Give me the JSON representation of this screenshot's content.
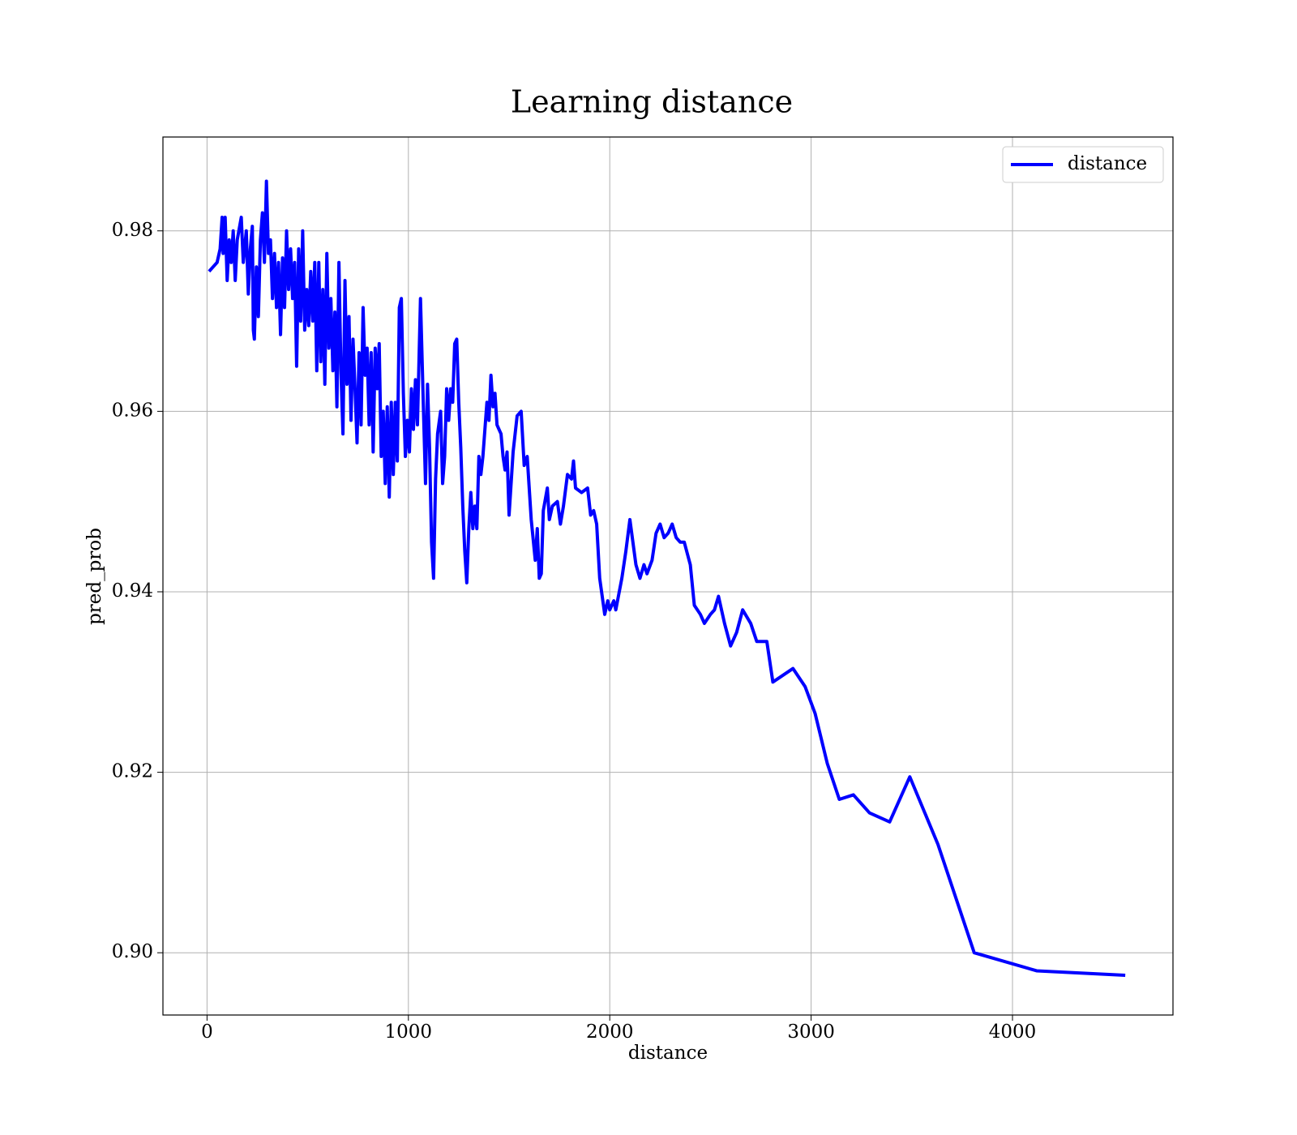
{
  "chart_data": {
    "type": "line",
    "title": "Learning distance",
    "x_label": "distance",
    "y_label": "pred_prob",
    "x": [
      10,
      50,
      65,
      75,
      80,
      90,
      100,
      110,
      120,
      130,
      140,
      150,
      170,
      180,
      195,
      205,
      215,
      225,
      230,
      235,
      245,
      255,
      265,
      275,
      285,
      295,
      305,
      315,
      325,
      335,
      345,
      355,
      365,
      375,
      385,
      395,
      405,
      415,
      425,
      435,
      445,
      455,
      465,
      475,
      485,
      495,
      505,
      515,
      525,
      535,
      545,
      555,
      565,
      575,
      585,
      595,
      605,
      615,
      625,
      635,
      645,
      655,
      665,
      675,
      685,
      695,
      705,
      715,
      725,
      735,
      745,
      755,
      765,
      775,
      785,
      795,
      805,
      815,
      825,
      835,
      845,
      855,
      865,
      875,
      885,
      895,
      905,
      915,
      925,
      935,
      945,
      955,
      965,
      975,
      985,
      995,
      1005,
      1015,
      1025,
      1035,
      1045,
      1060,
      1075,
      1085,
      1095,
      1105,
      1115,
      1125,
      1135,
      1145,
      1160,
      1170,
      1180,
      1190,
      1200,
      1210,
      1220,
      1230,
      1240,
      1250,
      1260,
      1270,
      1280,
      1290,
      1300,
      1310,
      1320,
      1330,
      1340,
      1350,
      1360,
      1370,
      1380,
      1390,
      1400,
      1410,
      1420,
      1430,
      1440,
      1450,
      1460,
      1470,
      1480,
      1490,
      1500,
      1520,
      1540,
      1560,
      1575,
      1590,
      1610,
      1630,
      1640,
      1650,
      1660,
      1670,
      1690,
      1700,
      1715,
      1740,
      1755,
      1770,
      1790,
      1810,
      1820,
      1830,
      1860,
      1890,
      1905,
      1920,
      1935,
      1950,
      1975,
      1990,
      2000,
      2020,
      2030,
      2060,
      2080,
      2100,
      2130,
      2150,
      2170,
      2185,
      2210,
      2230,
      2250,
      2270,
      2290,
      2310,
      2330,
      2350,
      2370,
      2400,
      2420,
      2450,
      2470,
      2500,
      2520,
      2540,
      2570,
      2600,
      2630,
      2660,
      2700,
      2730,
      2780,
      2810,
      2910,
      2970,
      3020,
      3080,
      3140,
      3210,
      3290,
      3390,
      3490,
      3630,
      3810,
      4120,
      4560
    ],
    "series": [
      {
        "name": "distance",
        "color": "#0000ff",
        "values": [
          0.9755,
          0.9765,
          0.978,
          0.9815,
          0.9775,
          0.9815,
          0.9745,
          0.979,
          0.9765,
          0.98,
          0.9745,
          0.979,
          0.9815,
          0.9765,
          0.98,
          0.973,
          0.978,
          0.9805,
          0.969,
          0.968,
          0.976,
          0.9705,
          0.979,
          0.982,
          0.9765,
          0.9855,
          0.9775,
          0.979,
          0.9725,
          0.9775,
          0.9715,
          0.9765,
          0.9685,
          0.977,
          0.9715,
          0.98,
          0.9735,
          0.978,
          0.9725,
          0.9765,
          0.965,
          0.978,
          0.97,
          0.98,
          0.969,
          0.9735,
          0.9695,
          0.9755,
          0.97,
          0.9765,
          0.9645,
          0.9765,
          0.9655,
          0.9735,
          0.963,
          0.9775,
          0.967,
          0.9725,
          0.9645,
          0.971,
          0.9605,
          0.9765,
          0.9645,
          0.9575,
          0.9745,
          0.963,
          0.9705,
          0.959,
          0.968,
          0.9625,
          0.9565,
          0.9665,
          0.9585,
          0.9715,
          0.964,
          0.967,
          0.9585,
          0.9665,
          0.9555,
          0.967,
          0.9625,
          0.9675,
          0.955,
          0.96,
          0.952,
          0.9605,
          0.9505,
          0.961,
          0.953,
          0.961,
          0.9545,
          0.9715,
          0.9725,
          0.962,
          0.955,
          0.959,
          0.9555,
          0.9625,
          0.958,
          0.9635,
          0.9585,
          0.9725,
          0.96,
          0.952,
          0.963,
          0.956,
          0.9455,
          0.9415,
          0.9525,
          0.9575,
          0.96,
          0.952,
          0.955,
          0.9625,
          0.959,
          0.9625,
          0.961,
          0.9675,
          0.968,
          0.961,
          0.956,
          0.9495,
          0.9445,
          0.941,
          0.947,
          0.951,
          0.947,
          0.9495,
          0.947,
          0.955,
          0.953,
          0.955,
          0.958,
          0.961,
          0.959,
          0.964,
          0.9605,
          0.962,
          0.9585,
          0.958,
          0.9575,
          0.955,
          0.9535,
          0.9555,
          0.9485,
          0.9555,
          0.9595,
          0.96,
          0.954,
          0.955,
          0.948,
          0.9435,
          0.947,
          0.9415,
          0.942,
          0.949,
          0.9515,
          0.948,
          0.9495,
          0.95,
          0.9475,
          0.9495,
          0.953,
          0.9525,
          0.9545,
          0.9515,
          0.951,
          0.9515,
          0.9485,
          0.949,
          0.9475,
          0.9415,
          0.9375,
          0.939,
          0.938,
          0.939,
          0.938,
          0.9415,
          0.9445,
          0.948,
          0.943,
          0.9415,
          0.943,
          0.942,
          0.9435,
          0.9465,
          0.9475,
          0.946,
          0.9465,
          0.9475,
          0.946,
          0.9455,
          0.9455,
          0.943,
          0.9385,
          0.9375,
          0.9365,
          0.9375,
          0.938,
          0.9395,
          0.9365,
          0.934,
          0.9355,
          0.938,
          0.9365,
          0.9345,
          0.9345,
          0.93,
          0.9315,
          0.9295,
          0.9265,
          0.921,
          0.917,
          0.9175,
          0.9155,
          0.9145,
          0.9195,
          0.912,
          0.9,
          0.898,
          0.8975
        ]
      }
    ],
    "xlim": [
      -219,
      4797
    ],
    "xticks": [
      0,
      1000,
      2000,
      3000,
      4000
    ],
    "ylim": [
      0.8931,
      0.9904
    ],
    "yticks": [
      {
        "value": 0.9,
        "label": "0.90"
      },
      {
        "value": 0.92,
        "label": "0.92"
      },
      {
        "value": 0.94,
        "label": "0.94"
      },
      {
        "value": 0.96,
        "label": "0.96"
      },
      {
        "value": 0.98,
        "label": "0.98"
      }
    ],
    "grid": true,
    "legend": "upper right"
  }
}
